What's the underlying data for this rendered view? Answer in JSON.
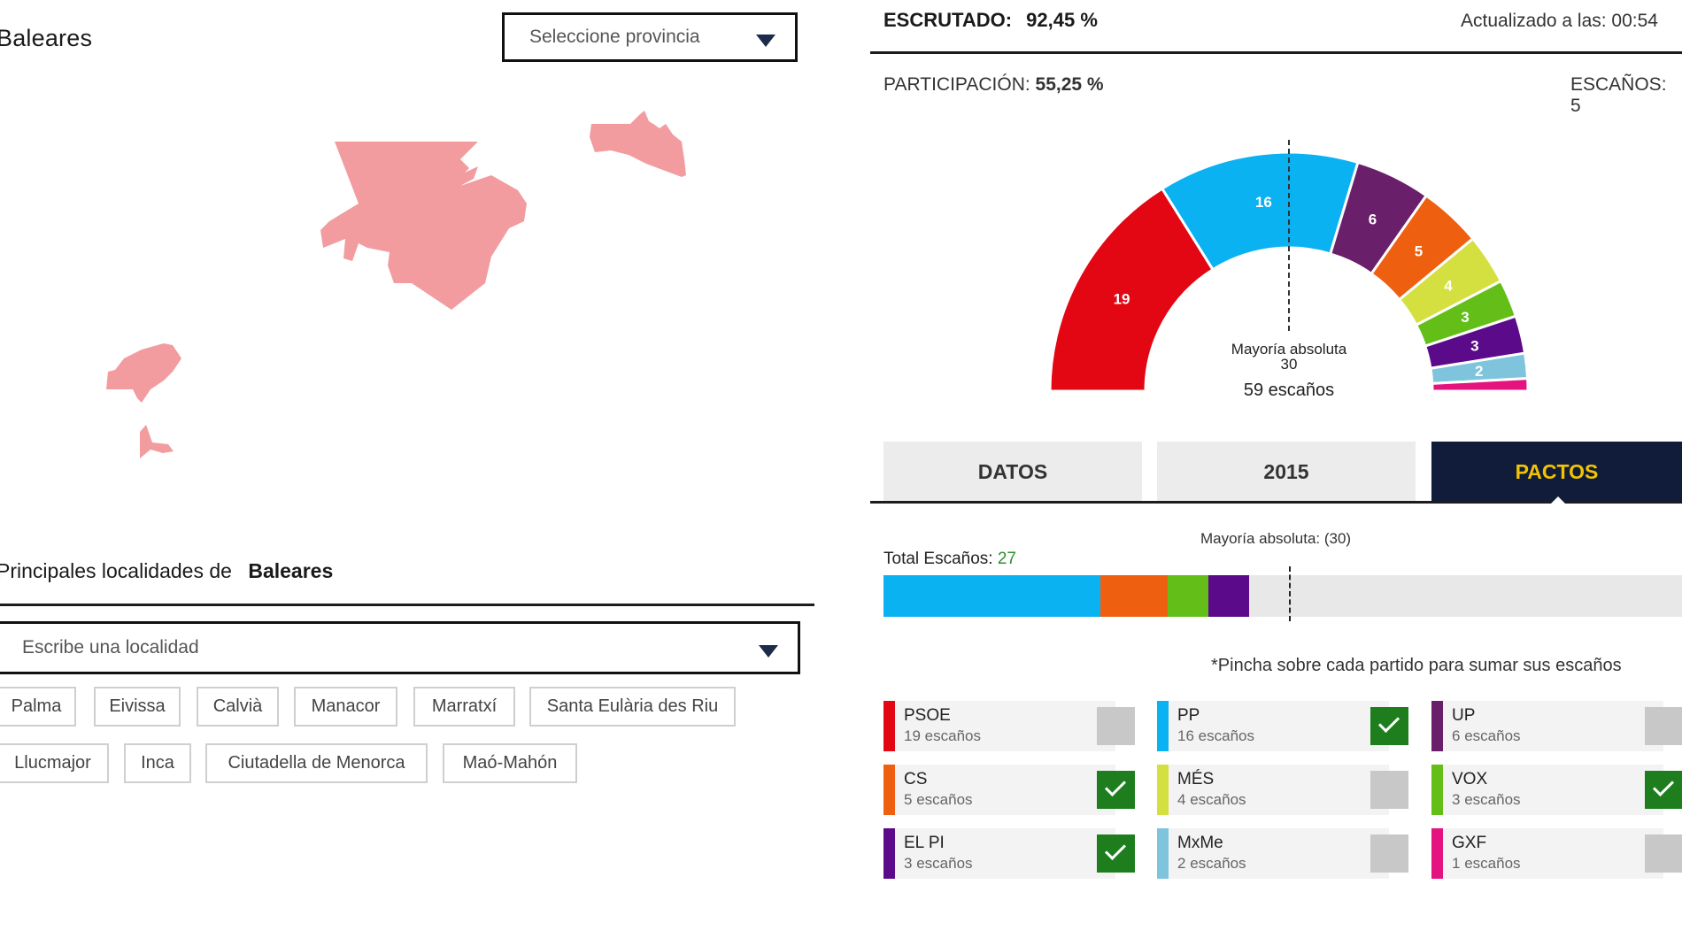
{
  "left": {
    "title": "Baleares",
    "province_select": {
      "placeholder": "Seleccione provincia"
    },
    "localities_title_prefix": "Principales localidades de",
    "localities_title_place": "Baleares",
    "locality_input": {
      "placeholder": "Escribe una localidad"
    },
    "localities": [
      "Palma",
      "Eivissa",
      "Calvià",
      "Manacor",
      "Marratxí",
      "Santa Eulària des Riu",
      "Llucmajor",
      "Inca",
      "Ciutadella de Menorca",
      "Maó-Mahón"
    ],
    "map_color": "#f29ca0"
  },
  "right": {
    "escrutado_label": "ESCRUTADO:",
    "escrutado_value": "92,45 %",
    "updated": "Actualizado a las: 00:54",
    "participacion_label": "PARTICIPACIÓN:",
    "participacion_value": "55,25 %",
    "escanos_label": "ESCAÑOS: 5",
    "hemicycle": {
      "majority_label": "Mayoría absoluta",
      "majority_value": "30",
      "total_label": "59 escaños"
    },
    "tabs": [
      {
        "label": "DATOS",
        "active": false
      },
      {
        "label": "2015",
        "active": false
      },
      {
        "label": "PACTOS",
        "active": true
      }
    ],
    "pacts": {
      "majority_label": "Mayoría absoluta: (30)",
      "total_label": "Total Escaños:",
      "total_value": "27",
      "hint": "*Pincha sobre cada partido para sumar sus escaños"
    },
    "seat_suffix": "escaños",
    "parties": [
      {
        "name": "PSOE",
        "seats": 19,
        "color": "#e30613",
        "selected": false
      },
      {
        "name": "PP",
        "seats": 16,
        "color": "#0bb2f2",
        "selected": true
      },
      {
        "name": "UP",
        "seats": 6,
        "color": "#6a1f6b",
        "selected": false
      },
      {
        "name": "CS",
        "seats": 5,
        "color": "#ee6010",
        "selected": true
      },
      {
        "name": "MÉS",
        "seats": 4,
        "color": "#d4e040",
        "selected": false
      },
      {
        "name": "VOX",
        "seats": 3,
        "color": "#63be17",
        "selected": true
      },
      {
        "name": "EL PI",
        "seats": 3,
        "color": "#5b0a8a",
        "selected": true
      },
      {
        "name": "MxMe",
        "seats": 2,
        "color": "#7ec4dc",
        "selected": false
      },
      {
        "name": "GXF",
        "seats": 1,
        "color": "#e5137f",
        "selected": false
      }
    ]
  }
}
